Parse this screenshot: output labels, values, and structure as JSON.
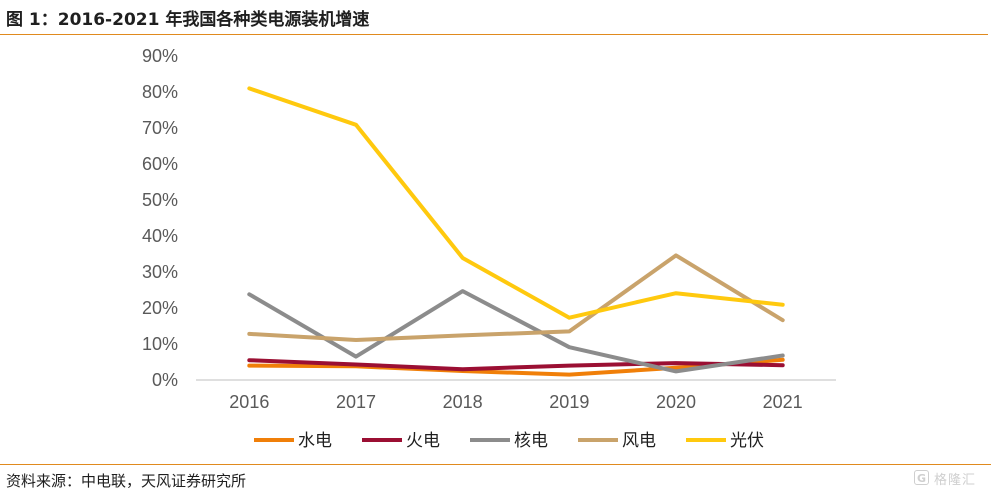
{
  "figure": {
    "title": "图 1：2016-2021 年我国各种类电源装机增速",
    "source": "资料来源：中电联，天风证券研究所",
    "watermark_text": "格隆汇",
    "watermark_badge": "G"
  },
  "chart_data": {
    "type": "line",
    "title": "",
    "xlabel": "",
    "ylabel": "",
    "categories": [
      "2016",
      "2017",
      "2018",
      "2019",
      "2020",
      "2021"
    ],
    "y_ticks": [
      "0%",
      "10%",
      "20%",
      "30%",
      "40%",
      "50%",
      "60%",
      "70%",
      "80%",
      "90%"
    ],
    "ylim": [
      0,
      90
    ],
    "grid": false,
    "legend_position": "bottom",
    "series": [
      {
        "name": "水电",
        "color": "#f07f09",
        "values": [
          4.0,
          3.8,
          2.5,
          1.5,
          3.4,
          5.6
        ]
      },
      {
        "name": "火电",
        "color": "#9b0f33",
        "values": [
          5.5,
          4.3,
          3.0,
          4.0,
          4.7,
          4.1
        ]
      },
      {
        "name": "核电",
        "color": "#8c8c8c",
        "values": [
          23.8,
          6.5,
          24.7,
          9.1,
          2.4,
          6.8
        ]
      },
      {
        "name": "风电",
        "color": "#c9a36b",
        "values": [
          12.8,
          11.1,
          12.4,
          13.5,
          34.6,
          16.6
        ]
      },
      {
        "name": "光伏",
        "color": "#ffc90e",
        "values": [
          81.0,
          70.9,
          33.9,
          17.3,
          24.1,
          20.9
        ]
      }
    ]
  }
}
